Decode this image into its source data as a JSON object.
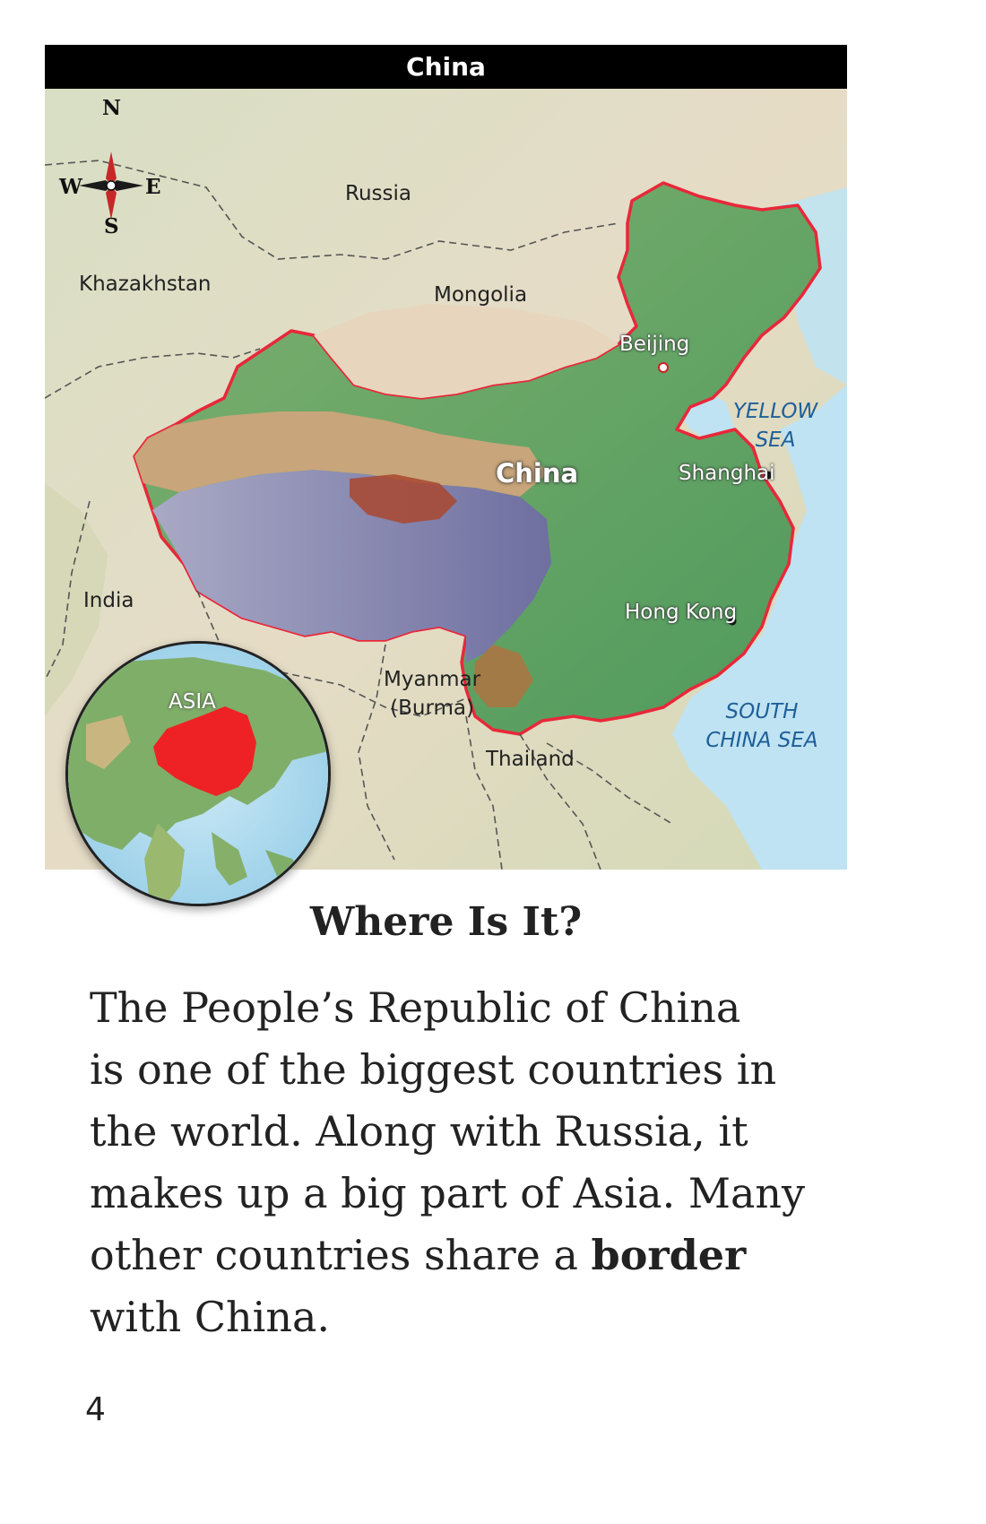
{
  "map": {
    "title": "China",
    "compass": {
      "north": "N",
      "south": "S",
      "east": "E",
      "west": "W"
    },
    "labels": {
      "russia": "Russia",
      "kazakhstan": "Khazakhstan",
      "mongolia": "Mongolia",
      "beijing": "Beijing",
      "yellow_sea_line1": "YELLOW",
      "yellow_sea_line2": "SEA",
      "china": "China",
      "shanghai": "Shanghai",
      "india": "India",
      "hong_kong": "Hong Kong",
      "myanmar_line1": "Myanmar",
      "myanmar_line2": "(Burma)",
      "thailand": "Thailand",
      "south_china_sea_line1": "SOUTH",
      "south_china_sea_line2": "CHINA SEA",
      "inset_region": "ASIA"
    },
    "colors": {
      "china_border": "#e8283a",
      "water": "#bfe3f2",
      "inset_china": "#ee2224",
      "sea_label": "#1e5f99"
    }
  },
  "section": {
    "heading": "Where Is It?",
    "body_lines": [
      "The People’s Republic of China",
      "is one of the biggest countries in",
      "the world. Along with Russia, it",
      "makes up a big part of Asia. Many",
      "other countries share a "
    ],
    "body_bold_word": "border",
    "body_last_line": "with China."
  },
  "page_number": "4"
}
